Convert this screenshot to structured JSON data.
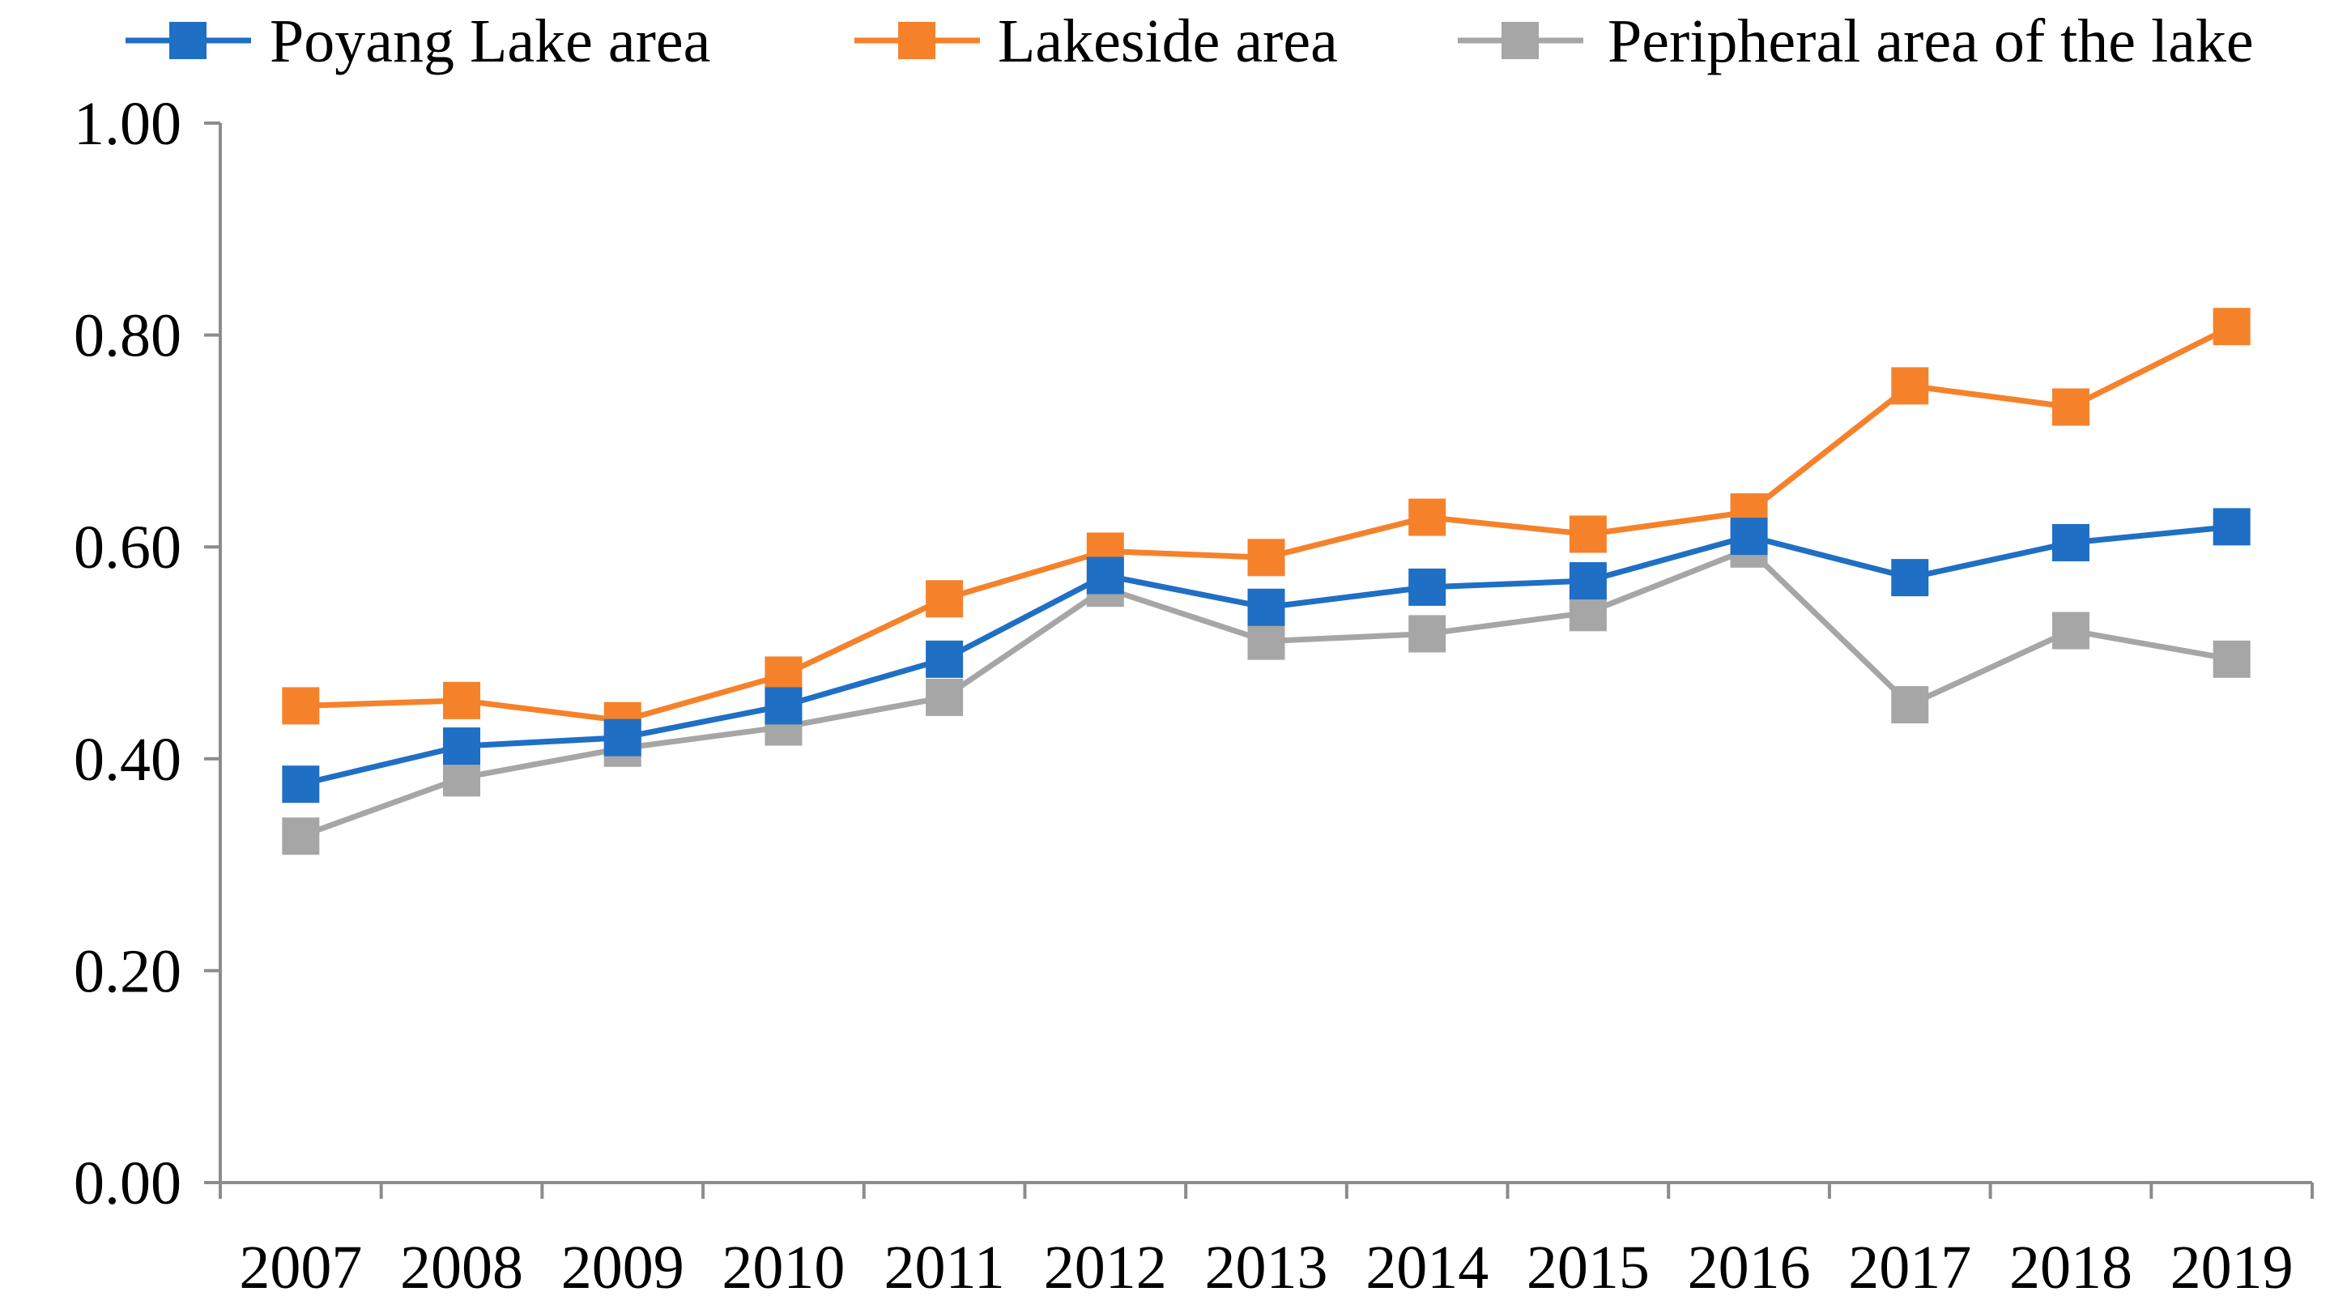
{
  "chart_data": {
    "type": "line",
    "title": "",
    "xlabel": "",
    "ylabel": "",
    "categories": [
      "2007",
      "2008",
      "2009",
      "2010",
      "2011",
      "2012",
      "2013",
      "2014",
      "2015",
      "2016",
      "2017",
      "2018",
      "2019"
    ],
    "ylim": [
      0,
      1
    ],
    "yticks": [
      "0.00",
      "0.20",
      "0.40",
      "0.60",
      "0.80",
      "1.00"
    ],
    "grid": false,
    "legend_position": "top",
    "marker": "square",
    "series": [
      {
        "name": "Poyang Lake area",
        "color": "#1f6fc5",
        "values": [
          0.376,
          0.412,
          0.42,
          0.45,
          0.494,
          0.573,
          0.543,
          0.562,
          0.568,
          0.61,
          0.571,
          0.604,
          0.619
        ]
      },
      {
        "name": "Lakeside area",
        "color": "#f5822a",
        "values": [
          0.45,
          0.455,
          0.436,
          0.479,
          0.551,
          0.596,
          0.59,
          0.628,
          0.612,
          0.633,
          0.752,
          0.732,
          0.808
        ]
      },
      {
        "name": "Peripheral area of the lake",
        "color": "#a6a6a6",
        "values": [
          0.327,
          0.382,
          0.41,
          0.43,
          0.458,
          0.561,
          0.511,
          0.518,
          0.538,
          0.598,
          0.451,
          0.521,
          0.494
        ]
      }
    ]
  }
}
